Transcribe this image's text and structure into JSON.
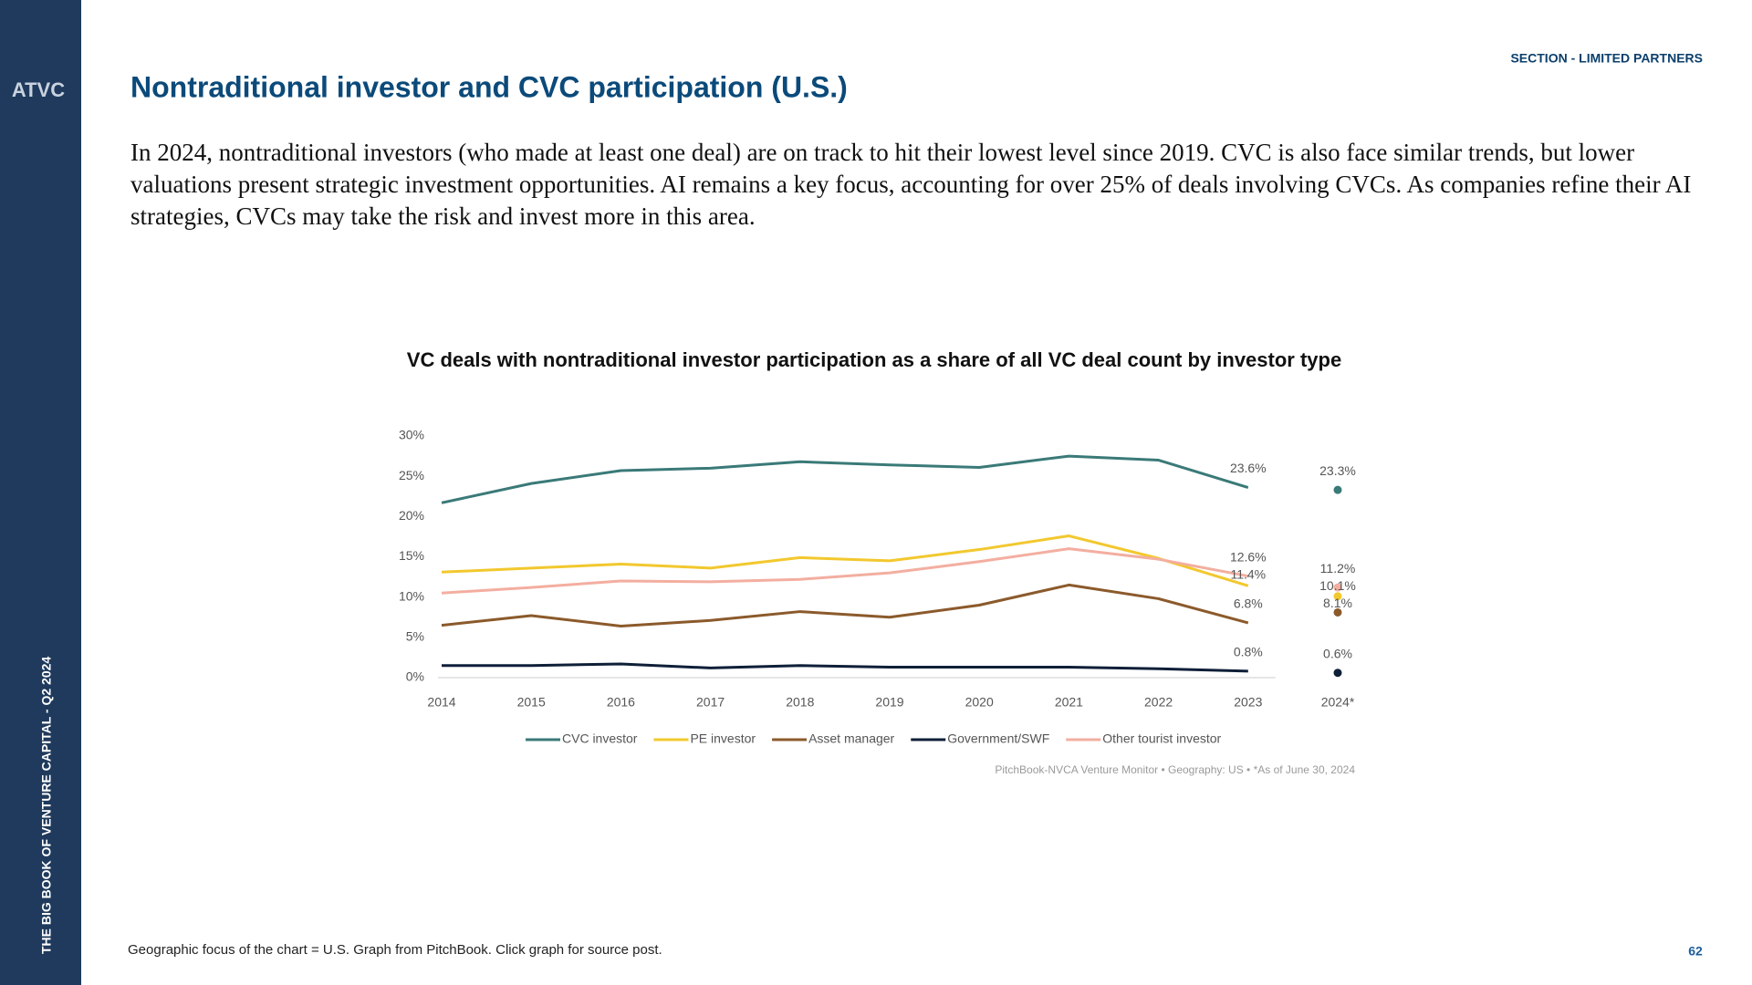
{
  "sidebar": {
    "logo": "ATVC",
    "caption": "THE BIG BOOK OF VENTURE CAPITAL - Q2 2024"
  },
  "header": {
    "section": "SECTION - LIMITED PARTNERS",
    "title": "Nontraditional investor and CVC participation (U.S.)"
  },
  "body": "In 2024, nontraditional investors (who made at least one deal) are on track to hit their lowest level since 2019. CVC is also face similar trends, but lower valuations present strategic investment opportunities. AI remains a key focus, accounting for over 25% of deals involving CVCs. As companies refine their AI strategies, CVCs may take the risk and invest more in this area.",
  "chart_data": {
    "type": "line",
    "title": "VC deals with nontraditional investor participation as a share of all VC deal count by investor type",
    "categories": [
      "2014",
      "2015",
      "2016",
      "2017",
      "2018",
      "2019",
      "2020",
      "2021",
      "2022",
      "2023",
      "2024*"
    ],
    "series": [
      {
        "name": "CVC investor",
        "color": "#3a7a78",
        "values": [
          21.7,
          24.1,
          25.7,
          26.0,
          26.8,
          26.4,
          26.1,
          27.5,
          27.0,
          23.6,
          23.3
        ],
        "value_labels": [
          null,
          null,
          null,
          null,
          null,
          null,
          null,
          null,
          null,
          "23.6%",
          "23.3%"
        ]
      },
      {
        "name": "PE investor",
        "color": "#f2c82e",
        "values": [
          13.1,
          13.6,
          14.1,
          13.6,
          14.9,
          14.5,
          15.9,
          17.6,
          14.8,
          11.4,
          10.1
        ],
        "value_labels": [
          null,
          null,
          null,
          null,
          null,
          null,
          null,
          null,
          null,
          "11.4%",
          "10.1%"
        ]
      },
      {
        "name": "Asset manager",
        "color": "#8b5a2b",
        "values": [
          6.5,
          7.7,
          6.4,
          7.1,
          8.2,
          7.5,
          9.0,
          11.5,
          9.8,
          6.8,
          8.1
        ],
        "value_labels": [
          null,
          null,
          null,
          null,
          null,
          null,
          null,
          null,
          null,
          "6.8%",
          "8.1%"
        ]
      },
      {
        "name": "Government/SWF",
        "color": "#0f1f38",
        "values": [
          1.5,
          1.5,
          1.7,
          1.2,
          1.5,
          1.3,
          1.3,
          1.3,
          1.1,
          0.8,
          0.6
        ],
        "value_labels": [
          null,
          null,
          null,
          null,
          null,
          null,
          null,
          null,
          null,
          "0.8%",
          "0.6%"
        ]
      },
      {
        "name": "Other tourist investor",
        "color": "#f3aea0",
        "values": [
          10.5,
          11.2,
          12.0,
          11.9,
          12.2,
          13.0,
          14.4,
          16.0,
          14.7,
          12.6,
          11.2
        ],
        "value_labels": [
          null,
          null,
          null,
          null,
          null,
          null,
          null,
          null,
          null,
          "12.6%",
          "11.2%"
        ]
      }
    ],
    "ylim": [
      0,
      30
    ],
    "yticks": [
      {
        "value": 0,
        "label": "0%"
      },
      {
        "value": 5,
        "label": "5%"
      },
      {
        "value": 10,
        "label": "10%"
      },
      {
        "value": 15,
        "label": "15%"
      },
      {
        "value": 20,
        "label": "20%"
      },
      {
        "value": 25,
        "label": "25%"
      },
      {
        "value": 30,
        "label": "30%"
      }
    ],
    "grid": false,
    "legend": "bottom",
    "source": "PitchBook-NVCA Venture Monitor  •  Geography: US  •  *As of June 30, 2024"
  },
  "footer": {
    "note": "Geographic focus of the chart = U.S. Graph from PitchBook. Click graph for source post.",
    "page": "62"
  }
}
